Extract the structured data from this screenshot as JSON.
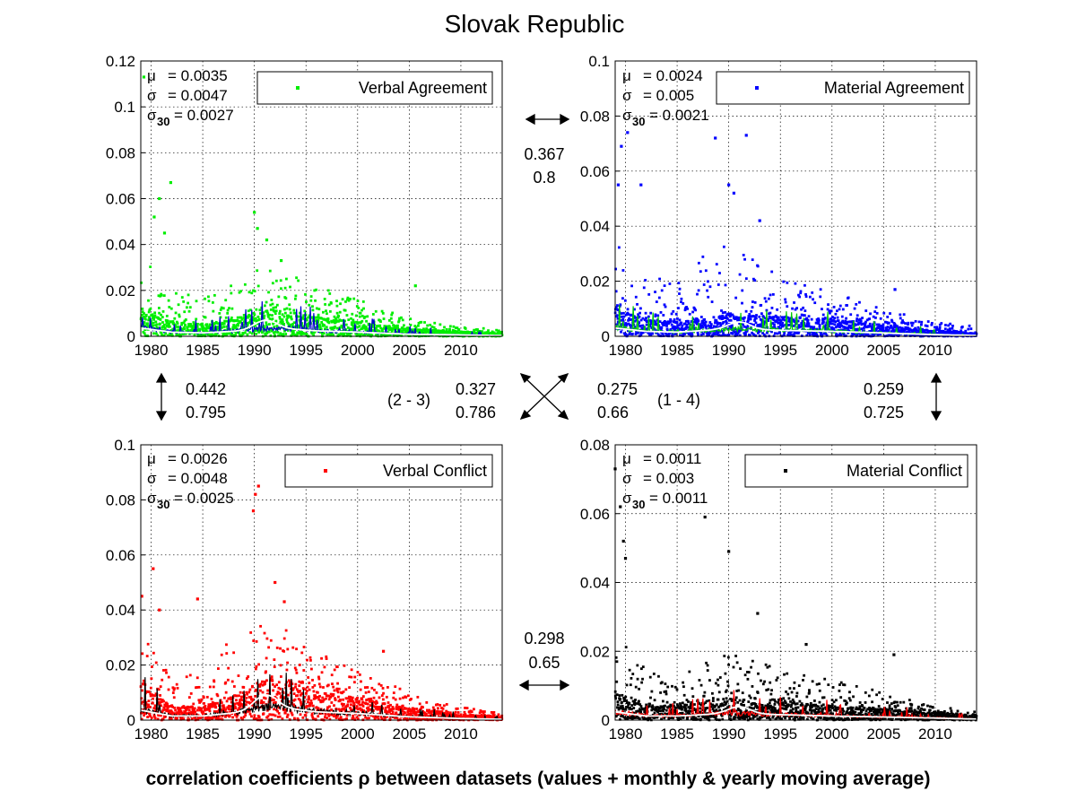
{
  "page": {
    "title": "Slovak Republic",
    "footer": "correlation coefficients ρ between datasets (values + monthly & yearly moving average)"
  },
  "colors": {
    "verbal_agreement": "#00ee00",
    "material_agreement": "#0000ff",
    "verbal_conflict": "#ff0000",
    "material_conflict": "#000000",
    "monthly_avg_top_left": "#0000cc",
    "monthly_avg_top_right": "#00cc00",
    "monthly_avg_bottom_left": "#000000",
    "monthly_avg_bottom_right": "#ff0000",
    "yearly_avg": "#ffffff"
  },
  "correlations": {
    "va_ma": [
      "0.367",
      "0.8"
    ],
    "va_vc": [
      "0.442",
      "0.795"
    ],
    "ma_mc": [
      "0.259",
      "0.725"
    ],
    "vc_mc": [
      "0.298",
      "0.65"
    ],
    "diag_2_3": {
      "label": "(2 - 3)",
      "values": [
        "0.327",
        "0.786"
      ]
    },
    "diag_1_4": {
      "label": "(1 - 4)",
      "values": [
        "0.275",
        "0.66"
      ]
    }
  },
  "chart_data": [
    {
      "type": "scatter",
      "legend": "Verbal Agreement",
      "xlim": [
        1979,
        2014
      ],
      "ylim": [
        0,
        0.12
      ],
      "xticks": [
        1980,
        1985,
        1990,
        1995,
        2000,
        2005,
        2010
      ],
      "yticks": [
        "0",
        "0.02",
        "0.04",
        "0.06",
        "0.08",
        "0.1",
        "0.12"
      ],
      "stats": {
        "mu": "= 0.0035",
        "sigma": "= 0.0047",
        "sigma30": "= 0.0027"
      },
      "grid": true,
      "legend_position": "top-right",
      "density_profile": [
        [
          1979,
          0.012,
          0.035
        ],
        [
          1982,
          0.006,
          0.02
        ],
        [
          1985,
          0.005,
          0.018
        ],
        [
          1989,
          0.008,
          0.028
        ],
        [
          1992,
          0.012,
          0.03
        ],
        [
          1996,
          0.008,
          0.022
        ],
        [
          2000,
          0.006,
          0.016
        ],
        [
          2005,
          0.003,
          0.008
        ],
        [
          2010,
          0.002,
          0.004
        ],
        [
          2014,
          0.001,
          0.003
        ]
      ],
      "outliers": [
        [
          1979.3,
          0.113
        ],
        [
          1980.3,
          0.052
        ],
        [
          1980.8,
          0.06
        ],
        [
          1981.3,
          0.045
        ],
        [
          1981.9,
          0.067
        ],
        [
          1990.0,
          0.054
        ],
        [
          1990.3,
          0.047
        ],
        [
          1991.2,
          0.042
        ],
        [
          1992.6,
          0.033
        ],
        [
          2005.6,
          0.022
        ]
      ]
    },
    {
      "type": "scatter",
      "legend": "Material Agreement",
      "xlim": [
        1979,
        2014
      ],
      "ylim": [
        0,
        0.1
      ],
      "xticks": [
        1980,
        1985,
        1990,
        1995,
        2000,
        2005,
        2010
      ],
      "yticks": [
        "0",
        "0.02",
        "0.04",
        "0.06",
        "0.08",
        "0.1"
      ],
      "stats": {
        "mu": "= 0.0024",
        "sigma": "= 0.005",
        "sigma30": "= 0.0021"
      },
      "grid": true,
      "legend_position": "top-right",
      "density_profile": [
        [
          1979,
          0.01,
          0.035
        ],
        [
          1982,
          0.006,
          0.022
        ],
        [
          1985,
          0.005,
          0.02
        ],
        [
          1989,
          0.008,
          0.035
        ],
        [
          1992,
          0.008,
          0.03
        ],
        [
          1996,
          0.007,
          0.02
        ],
        [
          2000,
          0.006,
          0.016
        ],
        [
          2005,
          0.004,
          0.01
        ],
        [
          2010,
          0.002,
          0.005
        ],
        [
          2014,
          0.001,
          0.004
        ]
      ],
      "outliers": [
        [
          1979.3,
          0.055
        ],
        [
          1979.6,
          0.069
        ],
        [
          1980.2,
          0.074
        ],
        [
          1981.5,
          0.055
        ],
        [
          1988.7,
          0.072
        ],
        [
          1990.0,
          0.055
        ],
        [
          1990.5,
          0.052
        ],
        [
          1991.7,
          0.073
        ],
        [
          1993.0,
          0.042
        ],
        [
          2006.1,
          0.017
        ]
      ]
    },
    {
      "type": "scatter",
      "legend": "Verbal Conflict",
      "xlim": [
        1979,
        2014
      ],
      "ylim": [
        0,
        0.1
      ],
      "xticks": [
        1980,
        1985,
        1990,
        1995,
        2000,
        2005,
        2010
      ],
      "yticks": [
        "0",
        "0.02",
        "0.04",
        "0.06",
        "0.08",
        "0.1"
      ],
      "stats": {
        "mu": "= 0.0026",
        "sigma": "= 0.0048",
        "sigma30": "= 0.0025"
      },
      "grid": true,
      "legend_position": "top-right",
      "density_profile": [
        [
          1979,
          0.012,
          0.03
        ],
        [
          1982,
          0.005,
          0.02
        ],
        [
          1985,
          0.005,
          0.018
        ],
        [
          1989,
          0.01,
          0.035
        ],
        [
          1992,
          0.016,
          0.04
        ],
        [
          1996,
          0.01,
          0.025
        ],
        [
          2000,
          0.008,
          0.018
        ],
        [
          2005,
          0.004,
          0.01
        ],
        [
          2010,
          0.002,
          0.005
        ],
        [
          2014,
          0.001,
          0.003
        ]
      ],
      "outliers": [
        [
          1979.1,
          0.045
        ],
        [
          1980.2,
          0.055
        ],
        [
          1980.8,
          0.04
        ],
        [
          1984.5,
          0.044
        ],
        [
          1989.9,
          0.076
        ],
        [
          1990.1,
          0.082
        ],
        [
          1990.4,
          0.085
        ],
        [
          1992.0,
          0.05
        ],
        [
          1992.9,
          0.043
        ],
        [
          2002.5,
          0.025
        ]
      ]
    },
    {
      "type": "scatter",
      "legend": "Material Conflict",
      "xlim": [
        1979,
        2014
      ],
      "ylim": [
        0,
        0.08
      ],
      "xticks": [
        1980,
        1985,
        1990,
        1995,
        2000,
        2005,
        2010
      ],
      "yticks": [
        "0",
        "0.02",
        "0.04",
        "0.06",
        "0.08"
      ],
      "stats": {
        "mu": "= 0.0011",
        "sigma": "= 0.003",
        "sigma30": "= 0.0011"
      },
      "grid": true,
      "legend_position": "top-right",
      "density_profile": [
        [
          1979,
          0.008,
          0.025
        ],
        [
          1982,
          0.004,
          0.015
        ],
        [
          1985,
          0.004,
          0.012
        ],
        [
          1989,
          0.006,
          0.02
        ],
        [
          1992,
          0.006,
          0.018
        ],
        [
          1996,
          0.005,
          0.014
        ],
        [
          2000,
          0.004,
          0.012
        ],
        [
          2005,
          0.003,
          0.008
        ],
        [
          2010,
          0.002,
          0.004
        ],
        [
          2014,
          0.001,
          0.003
        ]
      ],
      "outliers": [
        [
          1979.0,
          0.073
        ],
        [
          1979.5,
          0.062
        ],
        [
          1979.8,
          0.052
        ],
        [
          1980.0,
          0.047
        ],
        [
          1987.7,
          0.059
        ],
        [
          1990.0,
          0.049
        ],
        [
          1992.8,
          0.031
        ],
        [
          1997.5,
          0.022
        ],
        [
          2006.0,
          0.019
        ]
      ]
    }
  ]
}
